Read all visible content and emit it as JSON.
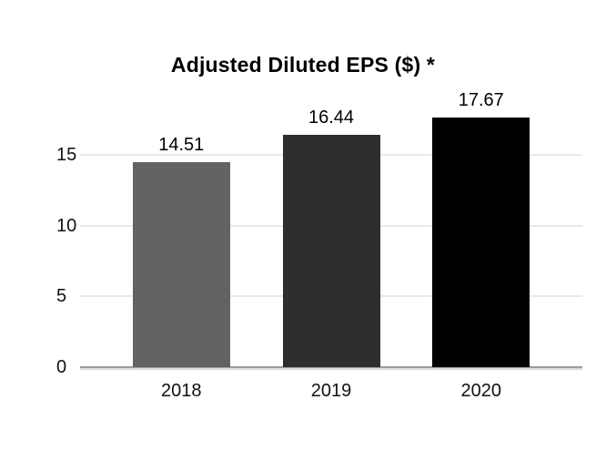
{
  "chart_data": {
    "type": "bar",
    "title": "Adjusted Diluted EPS ($) *",
    "categories": [
      "2018",
      "2019",
      "2020"
    ],
    "values": [
      14.51,
      16.44,
      17.67
    ],
    "value_labels": [
      "14.51",
      "16.44",
      "17.67"
    ],
    "bar_colors": [
      "#636363",
      "#2e2e2e",
      "#000000"
    ],
    "xlabel": "",
    "ylabel": "",
    "ylim": [
      0,
      19.5
    ],
    "yticks": [
      0,
      5,
      10,
      15
    ],
    "gridlines": [
      5,
      10,
      15
    ],
    "legend": "none",
    "grid": "horizontal-light",
    "background_color": "#ffffff",
    "gridline_color": "#e9e9e9",
    "axis_line_color": "#9c9c9c"
  }
}
